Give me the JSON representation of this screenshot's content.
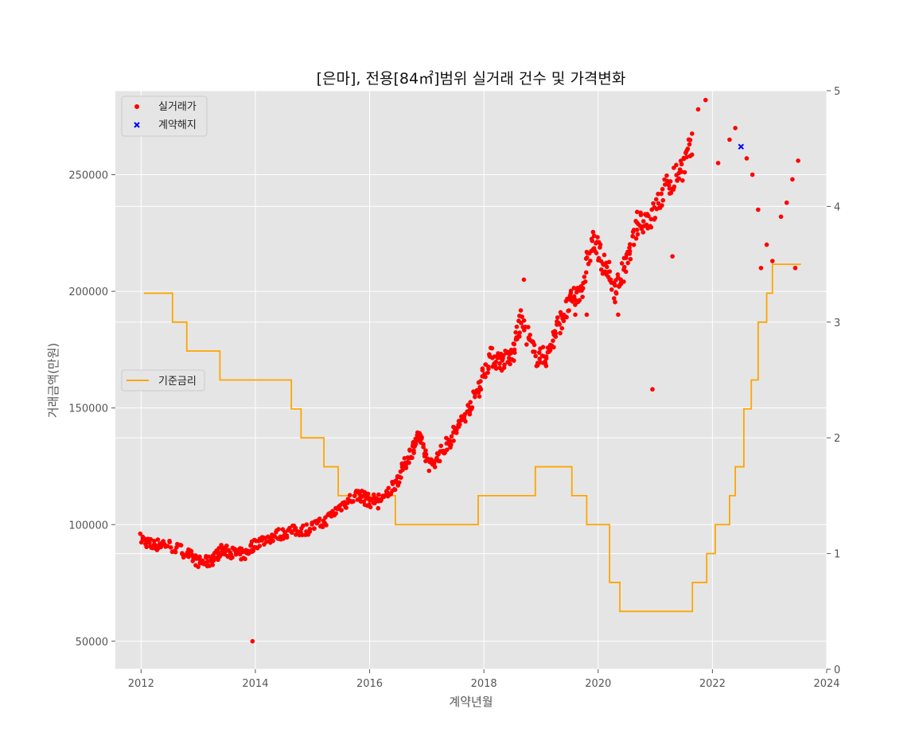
{
  "chart_data": {
    "type": "scatter",
    "title": "[은마], 전용[84㎡]범위 실거래 건수 및 가격변화",
    "xlabel": "계약년월",
    "ylabel": "거래금액(만원)",
    "xlim": [
      2011.55,
      2024.0
    ],
    "ylim": [
      38000,
      286000
    ],
    "y2lim": [
      0,
      5
    ],
    "x_ticks": [
      2012,
      2014,
      2016,
      2018,
      2020,
      2022,
      2024
    ],
    "y_ticks": [
      50000,
      100000,
      150000,
      200000,
      250000
    ],
    "y2_ticks": [
      0,
      1,
      2,
      3,
      4,
      5
    ],
    "grid": true,
    "legend_top": {
      "placement": "upper-left",
      "entries": [
        "실거래가",
        "계약해지"
      ]
    },
    "legend_mid": {
      "placement": "center-left",
      "entries": [
        "기준금리"
      ]
    },
    "colors": {
      "trade": "#ff0000",
      "cancel": "#0000ff",
      "rate": "#ffa500",
      "plot_bg": "#e5e5e5",
      "grid": "#ffffff"
    },
    "series": [
      {
        "name": "실거래가",
        "marker": "circle",
        "anchors": [
          [
            2012.0,
            94000
          ],
          [
            2012.2,
            91000
          ],
          [
            2012.4,
            92000
          ],
          [
            2012.8,
            88000
          ],
          [
            2013.0,
            84000
          ],
          [
            2013.2,
            84000
          ],
          [
            2013.4,
            89000
          ],
          [
            2013.6,
            88000
          ],
          [
            2013.8,
            87000
          ],
          [
            2014.0,
            92000
          ],
          [
            2014.3,
            95000
          ],
          [
            2014.6,
            97000
          ],
          [
            2014.9,
            98000
          ],
          [
            2015.2,
            101000
          ],
          [
            2015.5,
            108000
          ],
          [
            2015.8,
            113000
          ],
          [
            2016.0,
            110000
          ],
          [
            2016.3,
            112000
          ],
          [
            2016.5,
            120000
          ],
          [
            2016.7,
            130000
          ],
          [
            2016.85,
            138000
          ],
          [
            2017.05,
            125000
          ],
          [
            2017.3,
            132000
          ],
          [
            2017.5,
            140000
          ],
          [
            2017.7,
            148000
          ],
          [
            2017.9,
            158000
          ],
          [
            2018.1,
            172000
          ],
          [
            2018.3,
            170000
          ],
          [
            2018.5,
            172000
          ],
          [
            2018.65,
            188000
          ],
          [
            2018.9,
            172000
          ],
          [
            2019.1,
            172000
          ],
          [
            2019.3,
            185000
          ],
          [
            2019.5,
            195000
          ],
          [
            2019.7,
            200000
          ],
          [
            2019.9,
            222000
          ],
          [
            2020.1,
            212000
          ],
          [
            2020.3,
            200000
          ],
          [
            2020.5,
            212000
          ],
          [
            2020.7,
            230000
          ],
          [
            2020.95,
            232000
          ],
          [
            2021.2,
            245000
          ],
          [
            2021.45,
            252000
          ],
          [
            2021.65,
            262000
          ]
        ],
        "extra_points": [
          [
            2013.95,
            50000
          ],
          [
            2020.95,
            158000
          ],
          [
            2021.3,
            215000
          ],
          [
            2021.75,
            278000
          ],
          [
            2021.88,
            282000
          ],
          [
            2022.1,
            255000
          ],
          [
            2022.3,
            265000
          ],
          [
            2022.4,
            270000
          ],
          [
            2022.6,
            257000
          ],
          [
            2022.7,
            250000
          ],
          [
            2022.8,
            235000
          ],
          [
            2022.85,
            210000
          ],
          [
            2022.95,
            220000
          ],
          [
            2023.05,
            213000
          ],
          [
            2023.2,
            232000
          ],
          [
            2023.3,
            238000
          ],
          [
            2023.4,
            248000
          ],
          [
            2023.45,
            210000
          ],
          [
            2023.5,
            256000
          ],
          [
            2016.15,
            107000
          ],
          [
            2019.6,
            190000
          ],
          [
            2020.35,
            190000
          ],
          [
            2018.7,
            205000
          ],
          [
            2019.8,
            190000
          ]
        ]
      },
      {
        "name": "계약해지",
        "marker": "x",
        "points": [
          [
            2022.5,
            262000
          ]
        ]
      },
      {
        "name": "기준금리",
        "type": "step",
        "axis": "right",
        "steps": [
          [
            2012.05,
            3.25
          ],
          [
            2012.55,
            3.0
          ],
          [
            2012.8,
            2.75
          ],
          [
            2013.38,
            2.5
          ],
          [
            2014.63,
            2.25
          ],
          [
            2014.8,
            2.0
          ],
          [
            2015.2,
            1.75
          ],
          [
            2015.45,
            1.5
          ],
          [
            2016.45,
            1.25
          ],
          [
            2017.9,
            1.5
          ],
          [
            2018.9,
            1.75
          ],
          [
            2019.54,
            1.5
          ],
          [
            2019.8,
            1.25
          ],
          [
            2020.2,
            0.75
          ],
          [
            2020.38,
            0.5
          ],
          [
            2021.65,
            0.75
          ],
          [
            2021.9,
            1.0
          ],
          [
            2022.05,
            1.25
          ],
          [
            2022.3,
            1.5
          ],
          [
            2022.4,
            1.75
          ],
          [
            2022.55,
            2.25
          ],
          [
            2022.68,
            2.5
          ],
          [
            2022.8,
            3.0
          ],
          [
            2022.95,
            3.25
          ],
          [
            2023.05,
            3.5
          ],
          [
            2023.55,
            3.5
          ]
        ]
      }
    ]
  }
}
